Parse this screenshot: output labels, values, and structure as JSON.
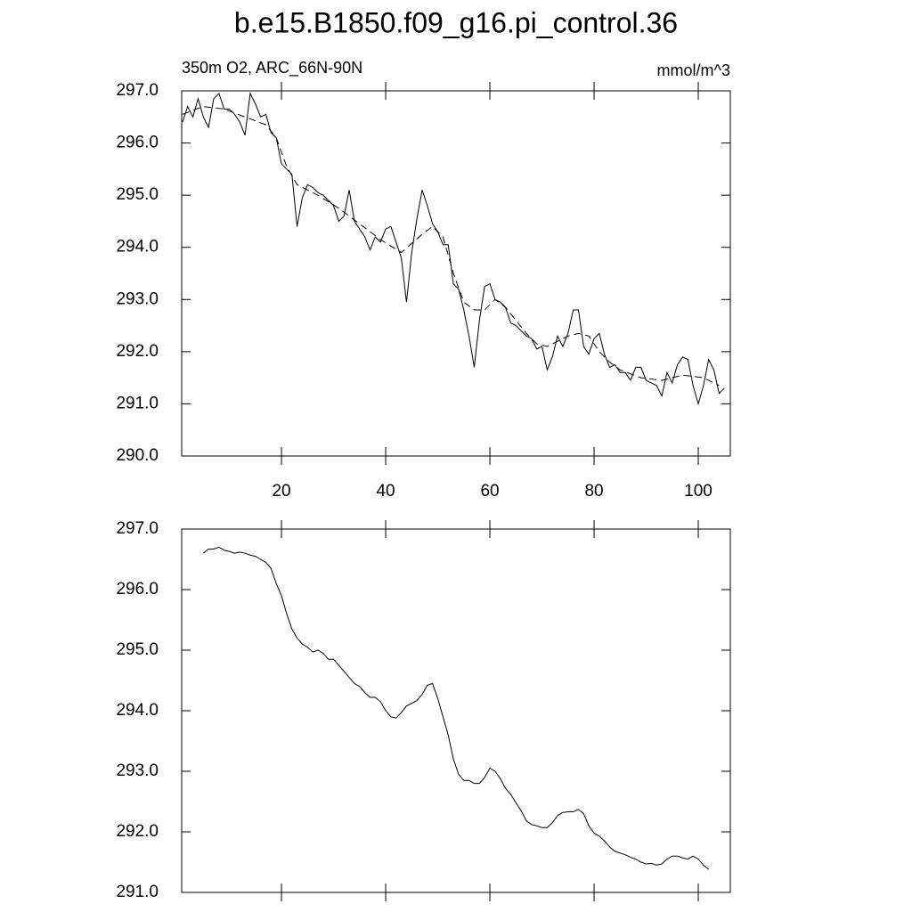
{
  "chart_data": [
    {
      "type": "line",
      "title": "b.e15.B1850.f09_g16.pi_control.36",
      "subtitle_left": "350m O2, ARC_66N-90N",
      "subtitle_right": "mmol/m^3",
      "xlim": [
        0.85,
        106.15
      ],
      "xticks": [
        20,
        40,
        60,
        80,
        100
      ],
      "ylim": [
        290,
        297
      ],
      "yticks": [
        {
          "value": 290,
          "label": "290.0"
        },
        {
          "value": 291,
          "label": "291.0"
        },
        {
          "value": 292,
          "label": "292.0"
        },
        {
          "value": 293,
          "label": "293.0"
        },
        {
          "value": 294,
          "label": "294.0"
        },
        {
          "value": 295,
          "label": "295.0"
        },
        {
          "value": 296,
          "label": "296.0"
        },
        {
          "value": 297,
          "label": "297.0"
        }
      ],
      "series": [
        {
          "color": "#000000",
          "dash": "solid",
          "x": [
            1,
            2,
            3,
            4,
            5,
            6,
            7,
            8,
            9,
            10,
            11,
            12,
            13,
            14,
            15,
            16,
            17,
            18,
            19,
            20,
            21,
            22,
            23,
            24,
            25,
            26,
            27,
            28,
            29,
            30,
            31,
            32,
            33,
            34,
            35,
            36,
            37,
            38,
            39,
            40,
            41,
            42,
            43,
            44,
            45,
            46,
            47,
            48,
            49,
            50,
            51,
            52,
            53,
            54,
            55,
            56,
            57,
            58,
            59,
            60,
            61,
            62,
            63,
            64,
            65,
            66,
            67,
            68,
            69,
            70,
            71,
            72,
            73,
            74,
            75,
            76,
            77,
            78,
            79,
            80,
            81,
            82,
            83,
            84,
            85,
            86,
            87,
            88,
            89,
            90,
            91,
            92,
            93,
            94,
            95,
            96,
            97,
            98,
            99,
            100,
            101,
            102,
            103,
            104,
            105
          ],
          "values": [
            296.4,
            296.7,
            296.5,
            296.85,
            296.5,
            296.3,
            296.85,
            296.95,
            296.65,
            296.65,
            296.55,
            296.4,
            296.15,
            296.95,
            296.75,
            296.5,
            296.55,
            296.2,
            296.1,
            295.6,
            295.5,
            295.4,
            294.4,
            294.95,
            295.2,
            295.15,
            295.05,
            295.0,
            294.9,
            294.8,
            294.5,
            294.6,
            295.1,
            294.5,
            294.35,
            294.2,
            293.95,
            294.2,
            294.1,
            294.35,
            294.4,
            294.1,
            293.8,
            292.95,
            293.9,
            294.55,
            295.1,
            294.8,
            294.45,
            294.3,
            294.05,
            294.05,
            293.3,
            293.2,
            292.8,
            292.3,
            291.7,
            292.6,
            293.25,
            293.3,
            293.0,
            292.95,
            292.85,
            292.55,
            292.5,
            292.4,
            292.3,
            292.25,
            292.05,
            292.1,
            291.65,
            291.9,
            292.3,
            292.1,
            292.35,
            292.8,
            292.8,
            292.1,
            291.95,
            292.25,
            292.35,
            291.95,
            291.7,
            291.75,
            291.6,
            291.6,
            291.45,
            291.7,
            291.7,
            291.45,
            291.4,
            291.35,
            291.15,
            291.6,
            291.4,
            291.75,
            291.9,
            291.85,
            291.35,
            291.0,
            291.35,
            291.85,
            291.65,
            291.2,
            291.3
          ]
        },
        {
          "color": "#000000",
          "dash": "dashed",
          "x": [
            1,
            5,
            9,
            13,
            17,
            19,
            21,
            23,
            27,
            31,
            35,
            39,
            43,
            47,
            49,
            51,
            53,
            55,
            57,
            59,
            61,
            63,
            65,
            67,
            69,
            71,
            73,
            75,
            77,
            79,
            81,
            83,
            85,
            89,
            93,
            97,
            101,
            104
          ],
          "values": [
            296.55,
            296.7,
            296.65,
            296.5,
            296.35,
            296.1,
            295.55,
            295.2,
            295.0,
            294.75,
            294.45,
            294.15,
            293.9,
            294.25,
            294.4,
            294.2,
            293.5,
            292.95,
            292.8,
            292.8,
            293.0,
            292.85,
            292.6,
            292.35,
            292.15,
            292.1,
            292.2,
            292.3,
            292.35,
            292.3,
            292.0,
            291.8,
            291.65,
            291.5,
            291.45,
            291.55,
            291.5,
            291.35
          ]
        }
      ]
    },
    {
      "type": "line",
      "xlim": [
        0.85,
        106.15
      ],
      "xticks": [
        20,
        40,
        60,
        80,
        100
      ],
      "ylim": [
        291,
        297
      ],
      "yticks": [
        {
          "value": 291,
          "label": "291.0"
        },
        {
          "value": 292,
          "label": "292.0"
        },
        {
          "value": 293,
          "label": "293.0"
        },
        {
          "value": 294,
          "label": "294.0"
        },
        {
          "value": 295,
          "label": "295.0"
        },
        {
          "value": 296,
          "label": "296.0"
        },
        {
          "value": 297,
          "label": "297.0"
        }
      ],
      "series": [
        {
          "color": "#000000",
          "dash": "solid",
          "x": [
            5,
            6,
            7,
            8,
            9,
            10,
            11,
            12,
            13,
            14,
            15,
            16,
            17,
            18,
            19,
            20,
            21,
            22,
            23,
            24,
            25,
            26,
            27,
            28,
            29,
            30,
            31,
            32,
            33,
            34,
            35,
            36,
            37,
            38,
            39,
            40,
            41,
            42,
            43,
            44,
            45,
            46,
            47,
            48,
            49,
            50,
            51,
            52,
            53,
            54,
            55,
            56,
            57,
            58,
            59,
            60,
            61,
            62,
            63,
            64,
            65,
            66,
            67,
            68,
            69,
            70,
            71,
            72,
            73,
            74,
            75,
            76,
            77,
            78,
            79,
            80,
            81,
            82,
            83,
            84,
            85,
            86,
            87,
            88,
            89,
            90,
            91,
            92,
            93,
            94,
            95,
            96,
            97,
            98,
            99,
            100,
            101,
            102
          ],
          "values": [
            296.6,
            296.67,
            296.67,
            296.7,
            296.65,
            296.63,
            296.6,
            296.62,
            296.6,
            296.57,
            296.55,
            296.5,
            296.45,
            296.35,
            296.1,
            295.9,
            295.6,
            295.35,
            295.2,
            295.1,
            295.05,
            294.97,
            295.0,
            294.95,
            294.85,
            294.85,
            294.75,
            294.65,
            294.55,
            294.45,
            294.4,
            294.3,
            294.22,
            294.22,
            294.15,
            294.0,
            293.9,
            293.88,
            293.97,
            294.08,
            294.12,
            294.17,
            294.27,
            294.42,
            294.45,
            294.2,
            293.9,
            293.6,
            293.2,
            292.95,
            292.85,
            292.85,
            292.8,
            292.8,
            292.9,
            293.05,
            293.0,
            292.88,
            292.72,
            292.62,
            292.48,
            292.35,
            292.18,
            292.12,
            292.1,
            292.07,
            292.07,
            292.15,
            292.27,
            292.32,
            292.33,
            292.33,
            292.37,
            292.3,
            292.1,
            291.98,
            291.93,
            291.85,
            291.75,
            291.68,
            291.65,
            291.62,
            291.58,
            291.55,
            291.5,
            291.47,
            291.48,
            291.45,
            291.47,
            291.55,
            291.6,
            291.6,
            291.57,
            291.55,
            291.6,
            291.55,
            291.45,
            291.38
          ]
        }
      ]
    }
  ]
}
